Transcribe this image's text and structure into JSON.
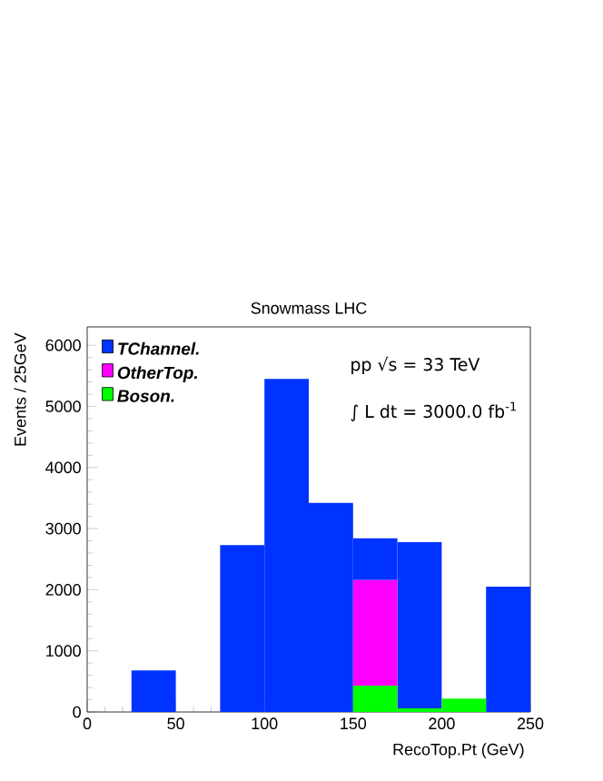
{
  "chart_data": {
    "type": "bar",
    "title": "Snowmass LHC",
    "xlabel": "RecoTop.Pt (GeV)",
    "ylabel": "Events / 25GeV",
    "x": [
      12.5,
      37.5,
      62.5,
      87.5,
      112.5,
      137.5,
      162.5,
      187.5,
      212.5,
      237.5
    ],
    "stacked": true,
    "series": [
      {
        "name": "Boson.",
        "color": "#00ff00",
        "values": [
          0,
          0,
          0,
          0,
          0,
          0,
          430,
          60,
          220,
          0
        ]
      },
      {
        "name": "OtherTop.",
        "color": "#ff00ff",
        "values": [
          0,
          0,
          0,
          0,
          0,
          0,
          1730,
          0,
          0,
          0
        ]
      },
      {
        "name": "TChannel.",
        "color": "#0033ff",
        "values": [
          0,
          680,
          0,
          2730,
          5450,
          3420,
          680,
          2720,
          0,
          2050
        ]
      }
    ],
    "xlim": [
      0,
      250
    ],
    "ylim": [
      0,
      6300
    ],
    "xticks": [
      0,
      50,
      100,
      150,
      200,
      250
    ],
    "yticks": [
      0,
      1000,
      2000,
      3000,
      4000,
      5000,
      6000
    ],
    "legend": "top left",
    "grid": false,
    "annotations": [
      "pp √s = 33 TeV",
      "∫ L dt = 3000.0 fb$^{-1}$"
    ]
  }
}
